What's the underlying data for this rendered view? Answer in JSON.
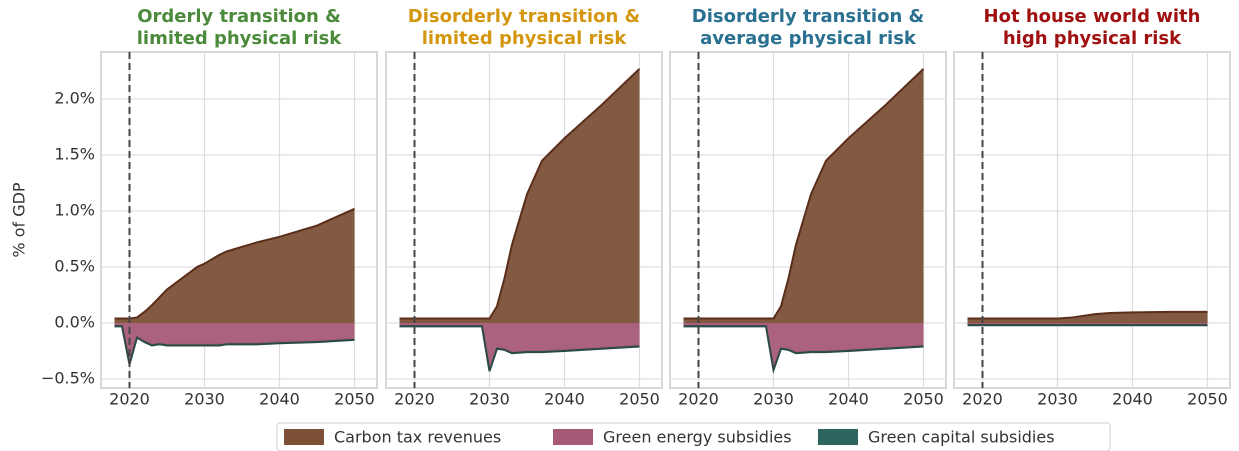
{
  "chart_data": [
    {
      "type": "area",
      "title": [
        "Orderly transition &",
        "limited physical risk"
      ],
      "title_color": "#4a8a3a",
      "ylabel": "% of GDP",
      "x": [
        2018,
        2019,
        2020,
        2021,
        2022,
        2023,
        2024,
        2025,
        2028,
        2029,
        2030,
        2031,
        2032,
        2033,
        2035,
        2037,
        2040,
        2045,
        2050
      ],
      "series": [
        {
          "name": "Carbon tax revenues",
          "color": "#7b5037",
          "values": [
            0.04,
            0.04,
            0.04,
            0.05,
            0.1,
            0.16,
            0.23,
            0.3,
            0.45,
            0.5,
            0.53,
            0.57,
            0.61,
            0.64,
            0.68,
            0.72,
            0.77,
            0.87,
            1.02
          ]
        },
        {
          "name": "Green energy subsidies",
          "color": "#a65a78",
          "values": [
            -0.02,
            -0.02,
            -0.36,
            -0.12,
            -0.16,
            -0.19,
            -0.18,
            -0.19,
            -0.19,
            -0.19,
            -0.19,
            -0.19,
            -0.19,
            -0.18,
            -0.18,
            -0.18,
            -0.17,
            -0.16,
            -0.14
          ]
        },
        {
          "name": "Green capital subsidies",
          "color": "#2f6560",
          "values": [
            -0.01,
            -0.01,
            -0.01,
            -0.01,
            -0.01,
            -0.01,
            -0.01,
            -0.01,
            -0.01,
            -0.01,
            -0.01,
            -0.01,
            -0.01,
            -0.01,
            -0.01,
            -0.01,
            -0.01,
            -0.01,
            -0.01
          ]
        }
      ],
      "xlim": [
        2016.2,
        2053
      ],
      "xticks": [
        2020,
        2030,
        2040,
        2050
      ],
      "ylim": [
        -0.58,
        2.42
      ],
      "yticks": [
        {
          "value": -0.5,
          "label": "−0.5%"
        },
        {
          "value": 0,
          "label": "0.0%"
        },
        {
          "value": 0.5,
          "label": "0.5%"
        },
        {
          "value": 1,
          "label": "1.0%"
        },
        {
          "value": 1.5,
          "label": "1.5%"
        },
        {
          "value": 2,
          "label": "2.0%"
        }
      ],
      "vline": 2020,
      "grid": true,
      "legend": "lower center"
    },
    {
      "type": "area",
      "title": [
        "Disorderly transition &",
        "limited physical risk"
      ],
      "title_color": "#d4960e",
      "x": [
        2018,
        2019,
        2020,
        2021,
        2022,
        2023,
        2024,
        2025,
        2028,
        2029,
        2030,
        2031,
        2032,
        2033,
        2035,
        2037,
        2040,
        2045,
        2050
      ],
      "series": [
        {
          "name": "Carbon tax revenues",
          "color": "#7b5037",
          "values": [
            0.04,
            0.04,
            0.04,
            0.04,
            0.04,
            0.04,
            0.04,
            0.04,
            0.04,
            0.04,
            0.04,
            0.15,
            0.4,
            0.7,
            1.15,
            1.45,
            1.65,
            1.95,
            2.27
          ]
        },
        {
          "name": "Green energy subsidies",
          "color": "#a65a78",
          "values": [
            -0.02,
            -0.02,
            -0.02,
            -0.02,
            -0.02,
            -0.02,
            -0.02,
            -0.02,
            -0.02,
            -0.02,
            -0.42,
            -0.22,
            -0.23,
            -0.26,
            -0.25,
            -0.25,
            -0.24,
            -0.22,
            -0.2
          ]
        },
        {
          "name": "Green capital subsidies",
          "color": "#2f6560",
          "values": [
            -0.01,
            -0.01,
            -0.01,
            -0.01,
            -0.01,
            -0.01,
            -0.01,
            -0.01,
            -0.01,
            -0.01,
            -0.01,
            -0.01,
            -0.01,
            -0.01,
            -0.01,
            -0.01,
            -0.01,
            -0.01,
            -0.01
          ]
        }
      ],
      "xlim": [
        2016.2,
        2053
      ],
      "xticks": [
        2020,
        2030,
        2040,
        2050
      ],
      "ylim": [
        -0.58,
        2.42
      ],
      "vline": 2020,
      "grid": true
    },
    {
      "type": "area",
      "title": [
        "Disorderly transition &",
        "average physical risk"
      ],
      "title_color": "#2a7090",
      "x": [
        2018,
        2019,
        2020,
        2021,
        2022,
        2023,
        2024,
        2025,
        2028,
        2029,
        2030,
        2031,
        2032,
        2033,
        2035,
        2037,
        2040,
        2045,
        2050
      ],
      "series": [
        {
          "name": "Carbon tax revenues",
          "color": "#7b5037",
          "values": [
            0.04,
            0.04,
            0.04,
            0.04,
            0.04,
            0.04,
            0.04,
            0.04,
            0.04,
            0.04,
            0.04,
            0.15,
            0.4,
            0.7,
            1.15,
            1.45,
            1.65,
            1.95,
            2.27
          ]
        },
        {
          "name": "Green energy subsidies",
          "color": "#a65a78",
          "values": [
            -0.02,
            -0.02,
            -0.02,
            -0.02,
            -0.02,
            -0.02,
            -0.02,
            -0.02,
            -0.02,
            -0.02,
            -0.41,
            -0.22,
            -0.23,
            -0.26,
            -0.25,
            -0.25,
            -0.24,
            -0.22,
            -0.2
          ]
        },
        {
          "name": "Green capital subsidies",
          "color": "#2f6560",
          "values": [
            -0.01,
            -0.01,
            -0.01,
            -0.01,
            -0.01,
            -0.01,
            -0.01,
            -0.01,
            -0.01,
            -0.01,
            -0.01,
            -0.01,
            -0.01,
            -0.01,
            -0.01,
            -0.01,
            -0.01,
            -0.01,
            -0.01
          ]
        }
      ],
      "xlim": [
        2016.2,
        2053
      ],
      "xticks": [
        2020,
        2030,
        2040,
        2050
      ],
      "ylim": [
        -0.58,
        2.42
      ],
      "vline": 2020,
      "grid": true
    },
    {
      "type": "area",
      "title": [
        "Hot house world with",
        "high physical risk"
      ],
      "title_color": "#a01010",
      "x": [
        2018,
        2019,
        2020,
        2021,
        2022,
        2023,
        2024,
        2025,
        2028,
        2029,
        2030,
        2031,
        2032,
        2033,
        2035,
        2037,
        2040,
        2045,
        2050
      ],
      "series": [
        {
          "name": "Carbon tax revenues",
          "color": "#7b5037",
          "values": [
            0.04,
            0.04,
            0.04,
            0.04,
            0.04,
            0.04,
            0.04,
            0.04,
            0.04,
            0.04,
            0.04,
            0.045,
            0.05,
            0.06,
            0.08,
            0.09,
            0.095,
            0.1,
            0.1
          ]
        },
        {
          "name": "Green energy subsidies",
          "color": "#a65a78",
          "values": [
            -0.01,
            -0.01,
            -0.01,
            -0.01,
            -0.01,
            -0.01,
            -0.01,
            -0.01,
            -0.01,
            -0.01,
            -0.01,
            -0.01,
            -0.01,
            -0.01,
            -0.01,
            -0.01,
            -0.01,
            -0.01,
            -0.01
          ]
        },
        {
          "name": "Green capital subsidies",
          "color": "#2f6560",
          "values": [
            -0.01,
            -0.01,
            -0.01,
            -0.01,
            -0.01,
            -0.01,
            -0.01,
            -0.01,
            -0.01,
            -0.01,
            -0.01,
            -0.01,
            -0.01,
            -0.01,
            -0.01,
            -0.01,
            -0.01,
            -0.01,
            -0.01
          ]
        }
      ],
      "xlim": [
        2016.2,
        2053
      ],
      "xticks": [
        2020,
        2030,
        2040,
        2050
      ],
      "ylim": [
        -0.58,
        2.42
      ],
      "vline": 2020,
      "grid": true
    }
  ]
}
